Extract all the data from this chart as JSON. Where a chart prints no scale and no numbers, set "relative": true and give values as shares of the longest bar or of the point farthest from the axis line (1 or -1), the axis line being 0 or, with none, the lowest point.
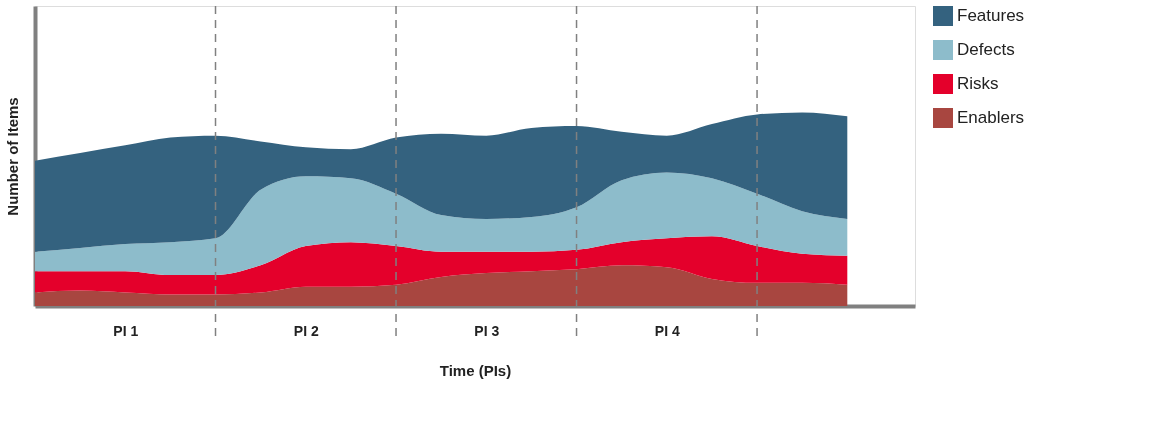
{
  "chart_data": {
    "type": "area",
    "stacked": true,
    "relative": true,
    "xlabel": "Time (PIs)",
    "ylabel": "Number of Items",
    "categories": [
      null,
      null,
      "PI 1",
      null,
      null,
      null,
      "PI 2",
      null,
      null,
      null,
      "PI 3",
      null,
      null,
      null,
      "PI 4",
      null,
      null,
      null,
      null
    ],
    "series": [
      {
        "name": "Enablers",
        "color": "#a84640",
        "values": [
          0.07,
          0.08,
          0.07,
          0.06,
          0.06,
          0.07,
          0.1,
          0.1,
          0.11,
          0.15,
          0.17,
          0.18,
          0.19,
          0.21,
          0.2,
          0.14,
          0.12,
          0.12,
          0.11
        ]
      },
      {
        "name": "Risks",
        "color": "#e4002b",
        "values": [
          0.11,
          0.1,
          0.11,
          0.1,
          0.1,
          0.14,
          0.21,
          0.23,
          0.2,
          0.13,
          0.11,
          0.1,
          0.1,
          0.12,
          0.15,
          0.22,
          0.19,
          0.15,
          0.15
        ]
      },
      {
        "name": "Defects",
        "color": "#8dbccb",
        "values": [
          0.1,
          0.12,
          0.14,
          0.17,
          0.19,
          0.39,
          0.36,
          0.33,
          0.27,
          0.19,
          0.17,
          0.18,
          0.22,
          0.32,
          0.34,
          0.3,
          0.27,
          0.22,
          0.19
        ]
      },
      {
        "name": "Features",
        "color": "#34627f",
        "values": [
          0.47,
          0.49,
          0.51,
          0.54,
          0.53,
          0.25,
          0.15,
          0.15,
          0.29,
          0.42,
          0.43,
          0.46,
          0.42,
          0.25,
          0.19,
          0.28,
          0.41,
          0.51,
          0.53
        ]
      }
    ],
    "grid": "x",
    "legend": "top right"
  }
}
